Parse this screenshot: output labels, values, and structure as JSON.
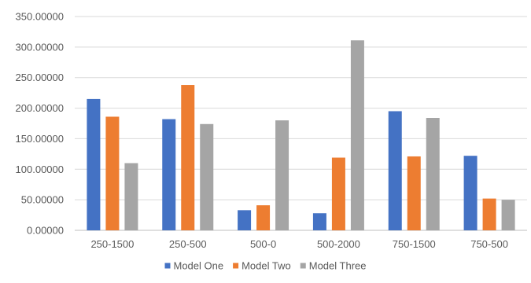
{
  "chart_data": {
    "type": "bar",
    "title": "",
    "xlabel": "",
    "ylabel": "",
    "categories": [
      "250-1500",
      "250-500",
      "500-0",
      "500-2000",
      "750-1500",
      "750-500"
    ],
    "series": [
      {
        "name": "Model One",
        "color": "#4472C4",
        "values": [
          215,
          182,
          33,
          28,
          195,
          122
        ]
      },
      {
        "name": "Model Two",
        "color": "#ED7D31",
        "values": [
          186,
          238,
          41,
          119,
          121,
          52
        ]
      },
      {
        "name": "Model Three",
        "color": "#A5A5A5",
        "values": [
          110,
          174,
          180,
          311,
          184,
          50
        ]
      }
    ],
    "ylim": [
      0,
      350
    ],
    "yticks": [
      "0.00000",
      "50.00000",
      "100.00000",
      "150.00000",
      "200.00000",
      "250.00000",
      "300.00000",
      "350.00000"
    ],
    "grid": true,
    "legend": "bottom"
  }
}
